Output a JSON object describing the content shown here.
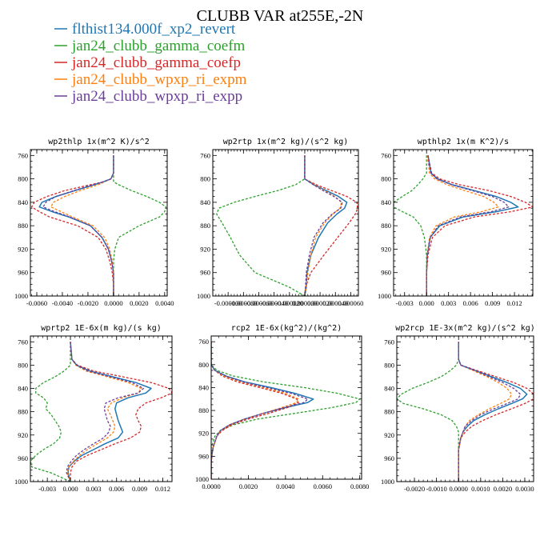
{
  "title": "CLUBB VAR at255E,-2N",
  "legend": [
    {
      "name": "flthist134.000f_xp2_revert",
      "color": "#1f77b4",
      "dash": "solid"
    },
    {
      "name": "jan24_clubb_gamma_coefm",
      "color": "#2ca02c",
      "dash": "dashed"
    },
    {
      "name": "jan24_clubb_gamma_coefp",
      "color": "#d62728",
      "dash": "dashed"
    },
    {
      "name": "jan24_clubb_wpxp_ri_expm",
      "color": "#ff7f0e",
      "dash": "dashed"
    },
    {
      "name": "jan24_clubb_wpxp_ri_expp",
      "color": "#6a3d9a",
      "dash": "dashed"
    }
  ],
  "chart_data": [
    {
      "type": "line",
      "title": "wp2thlp   1x(m^2 K)/s^2",
      "xlim": [
        -0.0065,
        0.0042
      ],
      "ylim": [
        1000,
        750
      ],
      "xticks": [
        -0.006,
        -0.004,
        -0.002,
        0,
        0.002,
        0.004
      ],
      "xtick_labels": [
        "-0.0060",
        "-0.0040",
        "-0.0020",
        "0.0000",
        "0.0020",
        "0.0040"
      ],
      "yticks": [
        760,
        800,
        840,
        880,
        920,
        960,
        1000
      ],
      "y": [
        760,
        790,
        800,
        805,
        810,
        820,
        830,
        840,
        848,
        856,
        865,
        880,
        900,
        920,
        940,
        960,
        980,
        1000
      ],
      "series": [
        {
          "name": "flthist134.000f_xp2_revert",
          "values": [
            0,
            0,
            -0.0002,
            -0.0008,
            -0.0015,
            -0.003,
            -0.0045,
            -0.0056,
            -0.0058,
            -0.0048,
            -0.0035,
            -0.0018,
            -0.0009,
            -0.0004,
            -0.00015,
            0,
            0,
            0
          ]
        },
        {
          "name": "jan24_clubb_gamma_coefm",
          "values": [
            0,
            0,
            0,
            0,
            0.0004,
            0.0014,
            0.0026,
            0.0036,
            0.0041,
            0.004,
            0.0036,
            0.002,
            0.0004,
            0.0001,
            0,
            0,
            0,
            0
          ]
        },
        {
          "name": "jan24_clubb_gamma_coefp",
          "values": [
            0,
            0,
            -0.0002,
            -0.0008,
            -0.0018,
            -0.0038,
            -0.0052,
            -0.0062,
            -0.0064,
            -0.0058,
            -0.005,
            -0.0028,
            -0.0012,
            -0.0006,
            -0.0003,
            -0.0001,
            0,
            0
          ]
        },
        {
          "name": "jan24_clubb_wpxp_ri_expm",
          "values": [
            0,
            0,
            -0.0002,
            -0.0007,
            -0.0012,
            -0.0026,
            -0.0038,
            -0.0047,
            -0.0049,
            -0.0041,
            -0.0032,
            -0.0016,
            -0.0007,
            -0.0003,
            -0.0001,
            0,
            0,
            0
          ]
        },
        {
          "name": "jan24_clubb_wpxp_ri_expp",
          "values": [
            0,
            0,
            -0.0002,
            -0.0008,
            -0.0016,
            -0.0031,
            -0.0045,
            -0.0053,
            -0.0055,
            -0.0046,
            -0.0034,
            -0.0018,
            -0.0009,
            -0.0004,
            -0.00015,
            0,
            0,
            0
          ]
        }
      ]
    },
    {
      "type": "line",
      "title": "wp2rtp   1x(m^2 kg)/(s^2 kg)",
      "xlim": [
        -0.00012,
        7e-05
      ],
      "ylim": [
        1000,
        750
      ],
      "xticks": [
        -0.0001,
        -8e-05,
        -6e-05,
        -4e-05,
        -2e-05,
        0,
        2e-05,
        4e-05,
        6e-05
      ],
      "xtick_labels": [
        "-0.000100",
        "-0.000080",
        "-0.000060",
        "-0.000040",
        "-0.000020",
        "0.000000",
        "0.000020",
        "0.000040",
        "0.000060"
      ],
      "yticks": [
        760,
        800,
        840,
        880,
        920,
        960,
        1000
      ],
      "y": [
        760,
        800,
        810,
        820,
        830,
        840,
        850,
        860,
        875,
        900,
        930,
        960,
        985,
        1000
      ],
      "series": [
        {
          "name": "flthist134.000f_xp2_revert",
          "values": [
            0,
            0,
            1.2e-05,
            2.8e-05,
            4.4e-05,
            5.5e-05,
            5.2e-05,
            4.2e-05,
            3e-05,
            1.8e-05,
            8e-06,
            3e-06,
            2e-06,
            0
          ]
        },
        {
          "name": "jan24_clubb_gamma_coefm",
          "values": [
            0,
            0,
            -1.2e-05,
            -3.5e-05,
            -6.5e-05,
            -9.2e-05,
            -0.000112,
            -0.000115,
            -0.000108,
            -9.7e-05,
            -8.5e-05,
            -6.5e-05,
            -2e-05,
            0
          ]
        },
        {
          "name": "jan24_clubb_gamma_coefp",
          "values": [
            0,
            0,
            1.5e-05,
            3.5e-05,
            5.5e-05,
            6.8e-05,
            6.9e-05,
            6.6e-05,
            5.8e-05,
            4.3e-05,
            2.5e-05,
            8e-06,
            1e-06,
            0
          ]
        },
        {
          "name": "jan24_clubb_wpxp_ri_expm",
          "values": [
            0,
            0,
            1.2e-05,
            2.6e-05,
            3.9e-05,
            4.8e-05,
            4.6e-05,
            3.7e-05,
            2.6e-05,
            1.4e-05,
            8e-06,
            4e-06,
            2e-06,
            0
          ]
        },
        {
          "name": "jan24_clubb_wpxp_ri_expp",
          "values": [
            0,
            0,
            1.1e-05,
            2.4e-05,
            3.8e-05,
            4.9e-05,
            4.7e-05,
            3.6e-05,
            2.4e-05,
            1.2e-05,
            6e-06,
            2e-06,
            1e-06,
            0
          ]
        }
      ]
    },
    {
      "type": "line",
      "title": "wpthlp2   1x(m K^2)/s",
      "xlim": [
        -0.0045,
        0.0145
      ],
      "ylim": [
        1000,
        750
      ],
      "xticks": [
        -0.003,
        0,
        0.003,
        0.006,
        0.009,
        0.012
      ],
      "xtick_labels": [
        "-0.003",
        "0.000",
        "0.003",
        "0.006",
        "0.009",
        "0.012"
      ],
      "yticks": [
        760,
        800,
        840,
        880,
        920,
        960,
        1000
      ],
      "y": [
        760,
        790,
        800,
        810,
        820,
        830,
        840,
        848,
        856,
        865,
        880,
        900,
        930,
        960,
        1000
      ],
      "series": [
        {
          "name": "flthist134.000f_xp2_revert",
          "values": [
            0.0002,
            0.0006,
            0.0015,
            0.0035,
            0.0065,
            0.0095,
            0.0115,
            0.0125,
            0.0095,
            0.005,
            0.0018,
            0.0005,
            0.0001,
            0,
            0
          ]
        },
        {
          "name": "jan24_clubb_gamma_coefm",
          "values": [
            0,
            0,
            -0.0005,
            -0.0012,
            -0.002,
            -0.0033,
            -0.0045,
            -0.0045,
            -0.0033,
            -0.0018,
            -0.0008,
            -0.0003,
            0,
            0,
            0
          ]
        },
        {
          "name": "jan24_clubb_gamma_coefp",
          "values": [
            0.0002,
            0.0007,
            0.0018,
            0.0045,
            0.0085,
            0.0115,
            0.0135,
            0.0145,
            0.0115,
            0.0065,
            0.0025,
            0.0008,
            0.0002,
            0,
            0
          ]
        },
        {
          "name": "jan24_clubb_wpxp_ri_expm",
          "values": [
            0.0001,
            0.0004,
            0.0011,
            0.0028,
            0.0052,
            0.0078,
            0.0092,
            0.0098,
            0.0075,
            0.0038,
            0.0013,
            0.0004,
            0.0001,
            0,
            0
          ]
        },
        {
          "name": "jan24_clubb_wpxp_ri_expp",
          "values": [
            0.0002,
            0.0006,
            0.0014,
            0.0034,
            0.0062,
            0.009,
            0.0106,
            0.0112,
            0.0088,
            0.0046,
            0.0016,
            0.0005,
            0.0001,
            0,
            0
          ]
        }
      ]
    },
    {
      "type": "line",
      "title": "wprtp2   1E-6x(m kg)/(s kg)",
      "xlim": [
        -0.0052,
        0.0132
      ],
      "ylim": [
        1000,
        750
      ],
      "xticks": [
        -0.003,
        0,
        0.003,
        0.006,
        0.009,
        0.012
      ],
      "xtick_labels": [
        "-0.003",
        "0.000",
        "0.003",
        "0.006",
        "0.009",
        "0.012"
      ],
      "yticks": [
        760,
        800,
        840,
        880,
        920,
        960,
        1000
      ],
      "y": [
        760,
        790,
        800,
        810,
        820,
        830,
        840,
        848,
        856,
        865,
        875,
        885,
        895,
        905,
        915,
        925,
        935,
        945,
        955,
        965,
        975,
        985,
        1000
      ],
      "series": [
        {
          "name": "flthist134.000f_xp2_revert",
          "values": [
            0,
            0.0002,
            0.0008,
            0.0025,
            0.0055,
            0.0085,
            0.0105,
            0.0098,
            0.0075,
            0.006,
            0.0058,
            0.006,
            0.0062,
            0.0065,
            0.0068,
            0.0062,
            0.0045,
            0.003,
            0.0015,
            0.0005,
            -0.0002,
            -0.0003,
            0
          ]
        },
        {
          "name": "jan24_clubb_gamma_coefm",
          "values": [
            0,
            0,
            0,
            -0.0008,
            -0.002,
            -0.0035,
            -0.0045,
            -0.0045,
            -0.0035,
            -0.003,
            -0.0032,
            -0.0025,
            -0.002,
            -0.0015,
            -0.0012,
            -0.0014,
            -0.0022,
            -0.0035,
            -0.0045,
            -0.0052,
            -0.005,
            -0.0025,
            0
          ]
        },
        {
          "name": "jan24_clubb_gamma_coefp",
          "values": [
            0,
            0.0002,
            0.0009,
            0.003,
            0.0068,
            0.0105,
            0.0128,
            0.0132,
            0.0118,
            0.0098,
            0.0088,
            0.0085,
            0.0088,
            0.0092,
            0.009,
            0.0078,
            0.0058,
            0.004,
            0.0022,
            0.0008,
            0.0002,
            0,
            0
          ]
        },
        {
          "name": "jan24_clubb_wpxp_ri_expm",
          "values": [
            0,
            0.0002,
            0.0007,
            0.002,
            0.0048,
            0.0075,
            0.0092,
            0.0088,
            0.0068,
            0.0053,
            0.0048,
            0.0052,
            0.0055,
            0.0058,
            0.0056,
            0.0048,
            0.0035,
            0.0022,
            0.0012,
            0.0004,
            -0.0002,
            -0.0004,
            0
          ]
        },
        {
          "name": "jan24_clubb_wpxp_ri_expp",
          "values": [
            0,
            0.0002,
            0.0008,
            0.0023,
            0.0052,
            0.008,
            0.0095,
            0.0088,
            0.0062,
            0.0046,
            0.0044,
            0.0046,
            0.0048,
            0.0052,
            0.005,
            0.0043,
            0.003,
            0.0018,
            0.0008,
            0.0001,
            -0.0004,
            -0.0005,
            0
          ]
        }
      ]
    },
    {
      "type": "line",
      "title": "rcp2   1E-6x(kg^2)/(kg^2)",
      "xlim": [
        0,
        0.0081
      ],
      "ylim": [
        1000,
        750
      ],
      "xticks": [
        0,
        0.002,
        0.004,
        0.006,
        0.008
      ],
      "xtick_labels": [
        "0.0000",
        "0.0020",
        "0.0040",
        "0.0060",
        "0.0080"
      ],
      "yticks": [
        760,
        800,
        840,
        880,
        920,
        960,
        1000
      ],
      "y": [
        760,
        800,
        810,
        820,
        830,
        840,
        850,
        860,
        866,
        875,
        885,
        895,
        905,
        915,
        925,
        935,
        945,
        955,
        970,
        985,
        1000
      ],
      "series": [
        {
          "name": "flthist134.000f_xp2_revert",
          "values": [
            0,
            0,
            0.0002,
            0.0008,
            0.0018,
            0.0032,
            0.0045,
            0.0055,
            0.0052,
            0.004,
            0.0028,
            0.0018,
            0.001,
            0.0005,
            0.0003,
            0.0002,
            0.0001,
            5e-05,
            0,
            0,
            0
          ]
        },
        {
          "name": "jan24_clubb_gamma_coefm",
          "values": [
            0,
            0,
            0.0003,
            0.0012,
            0.0028,
            0.005,
            0.0068,
            0.008,
            0.0078,
            0.0065,
            0.0045,
            0.0025,
            0.0012,
            0.0005,
            0.0002,
            0.0001,
            0,
            0,
            0,
            0,
            0
          ]
        },
        {
          "name": "jan24_clubb_gamma_coefp",
          "values": [
            0,
            0,
            0.0002,
            0.0006,
            0.0014,
            0.0026,
            0.0038,
            0.0046,
            0.0047,
            0.0041,
            0.0031,
            0.002,
            0.0011,
            0.0006,
            0.0003,
            0.0002,
            0.0001,
            5e-05,
            0,
            0,
            0
          ]
        },
        {
          "name": "jan24_clubb_wpxp_ri_expm",
          "values": [
            0,
            0,
            0.0002,
            0.0007,
            0.0016,
            0.0028,
            0.004,
            0.0047,
            0.0046,
            0.0038,
            0.0028,
            0.0018,
            0.001,
            0.0005,
            0.0003,
            0.0002,
            0.0001,
            5e-05,
            0,
            0,
            0
          ]
        },
        {
          "name": "jan24_clubb_wpxp_ri_expp",
          "values": [
            0,
            0,
            0.0002,
            0.0008,
            0.0017,
            0.003,
            0.0043,
            0.0052,
            0.005,
            0.0039,
            0.0028,
            0.0018,
            0.001,
            0.0005,
            0.0003,
            0.0002,
            0.0001,
            5e-05,
            0,
            0,
            0
          ]
        }
      ]
    },
    {
      "type": "line",
      "title": "wp2rcp   1E-3x(m^2 kg)/(s^2 kg)",
      "xlim": [
        -0.0028,
        0.0034
      ],
      "ylim": [
        1000,
        750
      ],
      "xticks": [
        -0.002,
        -0.001,
        0,
        0.001,
        0.002,
        0.003
      ],
      "xtick_labels": [
        "-0.0020",
        "-0.0010",
        "0.0000",
        "0.0010",
        "0.0020",
        "0.0030"
      ],
      "yticks": [
        760,
        800,
        840,
        880,
        920,
        960,
        1000
      ],
      "y": [
        760,
        790,
        800,
        810,
        820,
        830,
        840,
        850,
        858,
        866,
        875,
        885,
        895,
        905,
        915,
        925,
        935,
        945,
        1000
      ],
      "series": [
        {
          "name": "flthist134.000f_xp2_revert",
          "values": [
            0,
            0,
            0.0001,
            0.0008,
            0.0015,
            0.0022,
            0.0028,
            0.0031,
            0.0029,
            0.0024,
            0.0018,
            0.0012,
            0.0007,
            0.0004,
            0.0002,
            0.0001,
            5e-05,
            0,
            0
          ]
        },
        {
          "name": "jan24_clubb_gamma_coefm",
          "values": [
            0,
            0,
            -0.0001,
            -0.0004,
            -0.0008,
            -0.0014,
            -0.0021,
            -0.0026,
            -0.0028,
            -0.0025,
            -0.0016,
            -0.0008,
            -0.0003,
            -0.0001,
            0,
            0,
            0,
            0,
            0
          ]
        },
        {
          "name": "jan24_clubb_gamma_coefp",
          "values": [
            0,
            0,
            0.0001,
            0.0009,
            0.0017,
            0.0025,
            0.0031,
            0.0034,
            0.0034,
            0.003,
            0.0024,
            0.0017,
            0.0011,
            0.0006,
            0.0003,
            0.0001,
            5e-05,
            0,
            0
          ]
        },
        {
          "name": "jan24_clubb_wpxp_ri_expm",
          "values": [
            0,
            0,
            0.0001,
            0.0007,
            0.0013,
            0.0018,
            0.0022,
            0.0024,
            0.0023,
            0.0019,
            0.0014,
            0.0009,
            0.0005,
            0.0003,
            0.0002,
            0.0001,
            5e-05,
            0,
            0
          ]
        },
        {
          "name": "jan24_clubb_wpxp_ri_expp",
          "values": [
            0,
            0,
            0.0001,
            0.0008,
            0.0014,
            0.002,
            0.0025,
            0.0028,
            0.0027,
            0.0022,
            0.0016,
            0.001,
            0.0006,
            0.0003,
            0.0002,
            0.0001,
            5e-05,
            0,
            0
          ]
        }
      ]
    }
  ]
}
